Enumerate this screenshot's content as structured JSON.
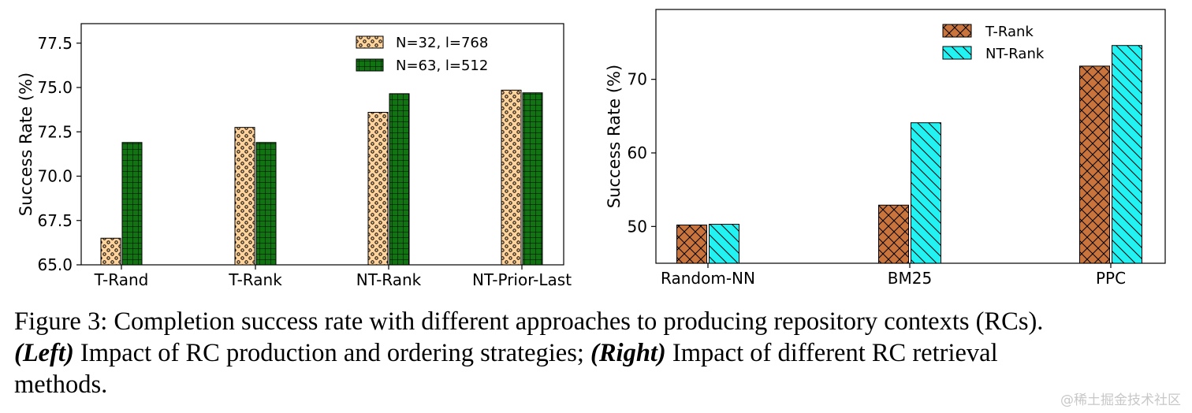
{
  "chart_data": [
    {
      "type": "bar",
      "categories": [
        "T-Rand",
        "T-Rank",
        "NT-Rank",
        "NT-Prior-Last"
      ],
      "series": [
        {
          "name": "N=32, l=768",
          "values": [
            66.5,
            72.75,
            73.6,
            74.85
          ],
          "color": "#ffd39b",
          "pattern": "dots"
        },
        {
          "name": "N=63, l=512",
          "values": [
            71.9,
            71.9,
            74.65,
            74.7
          ],
          "color": "#127312",
          "pattern": "grid"
        }
      ],
      "title": "",
      "xlabel": "",
      "ylabel": "Success Rate (%)",
      "ylim": [
        65.0,
        78.6
      ],
      "yticks": [
        "65.0",
        "67.5",
        "70.0",
        "72.5",
        "75.0",
        "77.5"
      ],
      "legend": "top-right",
      "grid": false
    },
    {
      "type": "bar",
      "categories": [
        "Random-NN",
        "BM25",
        "PPC"
      ],
      "series": [
        {
          "name": "T-Rank",
          "values": [
            50.2,
            52.9,
            71.8
          ],
          "color": "#c8743c",
          "pattern": "crosshatch"
        },
        {
          "name": "NT-Rank",
          "values": [
            50.3,
            64.1,
            74.6
          ],
          "color": "#22f2f2",
          "pattern": "diagonal"
        }
      ],
      "title": "",
      "xlabel": "",
      "ylabel": "Success Rate (%)",
      "ylim": [
        45.0,
        79.5
      ],
      "yticks": [
        "50",
        "60",
        "70"
      ],
      "legend": "top-center",
      "grid": false
    }
  ],
  "caption": {
    "line1": "Figure 3: Completion success rate with different approaches to producing repository contexts (RCs).",
    "left_label": "(Left)",
    "line2_mid": " Impact of RC production and ordering strategies; ",
    "right_label": "(Right)",
    "line2_end": " Impact of different RC retrieval",
    "line3": "methods."
  },
  "watermark": "@稀土掘金技术社区"
}
